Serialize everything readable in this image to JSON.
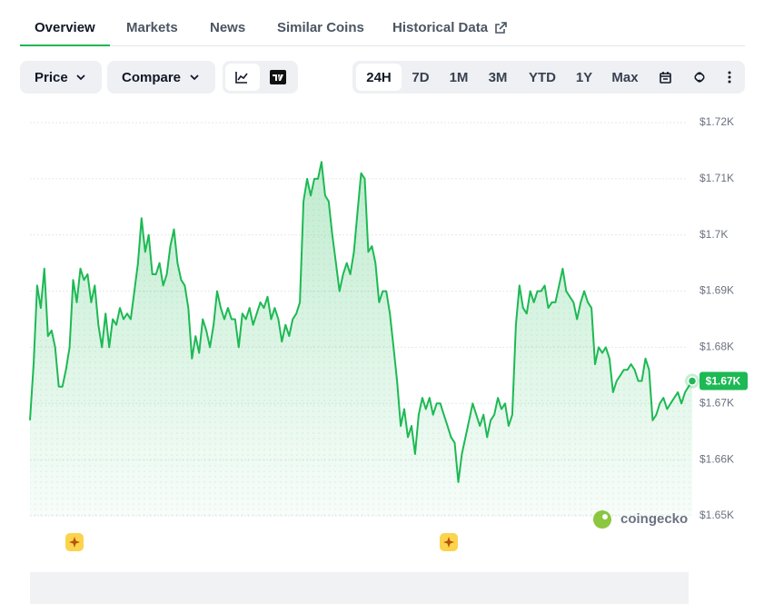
{
  "tabs": [
    "Overview",
    "Markets",
    "News",
    "Similar Coins",
    "Historical Data"
  ],
  "active_tab_index": 0,
  "controls": {
    "price": "Price",
    "compare": "Compare"
  },
  "ranges": [
    "24H",
    "7D",
    "1M",
    "3M",
    "YTD",
    "1Y",
    "Max"
  ],
  "active_range_index": 0,
  "watermark": "coingecko",
  "chart_data": {
    "type": "line",
    "color": "#1db954",
    "grid": true,
    "ylim": [
      1650,
      1720
    ],
    "yticks": [
      {
        "value": 1720,
        "label": "$1.72K"
      },
      {
        "value": 1710,
        "label": "$1.71K"
      },
      {
        "value": 1700,
        "label": "$1.7K"
      },
      {
        "value": 1690,
        "label": "$1.69K"
      },
      {
        "value": 1680,
        "label": "$1.68K"
      },
      {
        "value": 1670,
        "label": "$1.67K"
      },
      {
        "value": 1660,
        "label": "$1.66K"
      },
      {
        "value": 1650,
        "label": "$1.65K"
      }
    ],
    "current_price_label": "$1.67K",
    "values": [
      1667,
      1677,
      1691,
      1687,
      1694,
      1682,
      1683,
      1680,
      1673,
      1673,
      1676,
      1680,
      1692,
      1688,
      1694,
      1692,
      1693,
      1688,
      1691,
      1684,
      1680,
      1686,
      1680,
      1685,
      1684,
      1687,
      1685,
      1686,
      1685,
      1690,
      1695,
      1703,
      1697,
      1700,
      1693,
      1693,
      1695,
      1691,
      1693,
      1698,
      1701,
      1695,
      1692,
      1691,
      1687,
      1678,
      1682,
      1679,
      1685,
      1683,
      1680,
      1684,
      1690,
      1687,
      1685,
      1687,
      1685,
      1685,
      1680,
      1686,
      1685,
      1687,
      1684,
      1686,
      1688,
      1687,
      1689,
      1685,
      1687,
      1685,
      1681,
      1684,
      1682,
      1685,
      1686,
      1688,
      1706,
      1710,
      1707,
      1710,
      1710,
      1713,
      1707,
      1706,
      1700,
      1695,
      1690,
      1693,
      1695,
      1693,
      1697,
      1704,
      1711,
      1710,
      1697,
      1698,
      1695,
      1688,
      1690,
      1690,
      1686,
      1680,
      1674,
      1666,
      1669,
      1664,
      1666,
      1661,
      1668,
      1671,
      1669,
      1671,
      1668,
      1670,
      1670,
      1668,
      1666,
      1664,
      1663,
      1656,
      1661,
      1664,
      1667,
      1670,
      1668,
      1666,
      1668,
      1664,
      1667,
      1668,
      1671,
      1669,
      1670,
      1666,
      1668,
      1684,
      1691,
      1687,
      1686,
      1690,
      1688,
      1690,
      1690,
      1691,
      1687,
      1688,
      1688,
      1691,
      1694,
      1690,
      1689,
      1688,
      1685,
      1688,
      1690,
      1688,
      1687,
      1677,
      1680,
      1679,
      1680,
      1678,
      1672,
      1674,
      1675,
      1676,
      1676,
      1677,
      1676,
      1674,
      1674,
      1678,
      1676,
      1667,
      1668,
      1670,
      1671,
      1669,
      1670,
      1671,
      1672,
      1670,
      1672,
      1673,
      1674
    ]
  }
}
